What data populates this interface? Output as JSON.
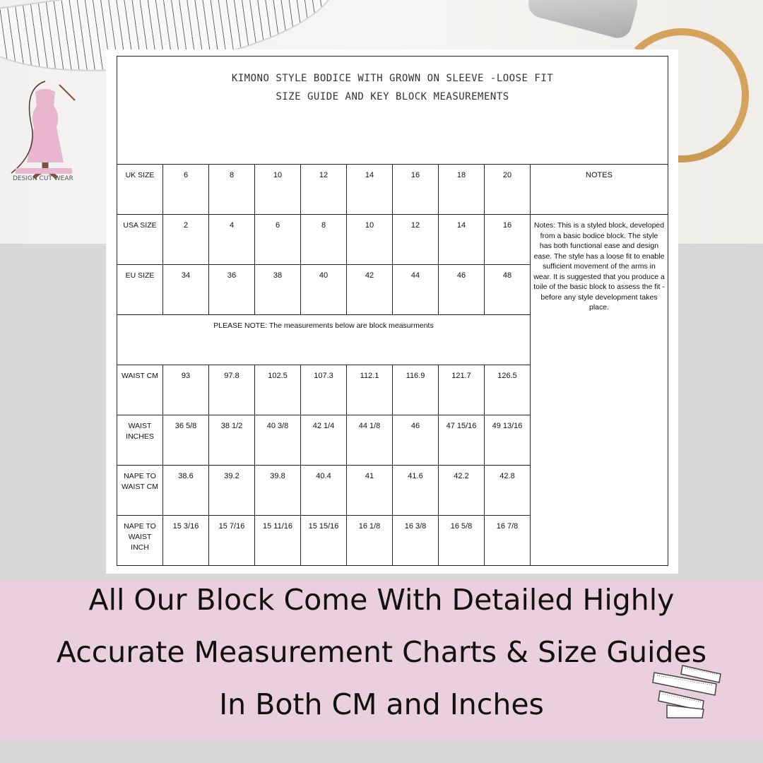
{
  "logo": {
    "text": "DESIGN CUT WEAR"
  },
  "chart": {
    "title_line1": "KIMONO STYLE BODICE WITH GROWN ON SLEEVE -LOOSE FIT",
    "title_line2": "SIZE GUIDE AND KEY BLOCK MEASUREMENTS",
    "notes_header": "NOTES",
    "notes_text": "Notes: This is a styled block, developed from a basic bodice block. The style has both functional ease and design ease. The style has a loose fit to enable sufficient movement of the arms in wear. It is suggested that you produce a toile of the basic block to assess the fit - before any style development takes place.",
    "please_note": "PLEASE NOTE: The measurements below are block measurments",
    "size_rows": [
      {
        "label": "UK SIZE",
        "values": [
          "6",
          "8",
          "10",
          "12",
          "14",
          "16",
          "18",
          "20"
        ]
      },
      {
        "label": "USA SIZE",
        "values": [
          "2",
          "4",
          "6",
          "8",
          "10",
          "12",
          "14",
          "16"
        ]
      },
      {
        "label": "EU SIZE",
        "values": [
          "34",
          "36",
          "38",
          "40",
          "42",
          "44",
          "46",
          "48"
        ]
      }
    ],
    "measure_rows": [
      {
        "label": "WAIST CM",
        "values": [
          "93",
          "97.8",
          "102.5",
          "107.3",
          "112.1",
          "116.9",
          "121.7",
          "126.5"
        ]
      },
      {
        "label": "WAIST INCHES",
        "values": [
          "36 5/8",
          "38 1/2",
          "40 3/8",
          "42 1/4",
          "44 1/8",
          "46",
          "47 15/16",
          "49 13/16"
        ]
      },
      {
        "label": "NAPE TO WAIST CM",
        "values": [
          "38.6",
          "39.2",
          "39.8",
          "40.4",
          "41",
          "41.6",
          "42.2",
          "42.8"
        ]
      },
      {
        "label": "NAPE TO WAIST INCH",
        "values": [
          "15 3/16",
          "15 7/16",
          "15 11/16",
          "15 15/16",
          "16 1/8",
          "16 3/8",
          "16 5/8",
          "16 7/8"
        ]
      }
    ]
  },
  "banner": {
    "line1": "All Our Block Come With Detailed Highly",
    "line2": "Accurate Measurement Charts & Size Guides",
    "line3": "In Both CM and Inches"
  },
  "colors": {
    "band": "#eacfdc",
    "background": "#d8d8d8",
    "logo_pink": "#e8b6cf"
  }
}
